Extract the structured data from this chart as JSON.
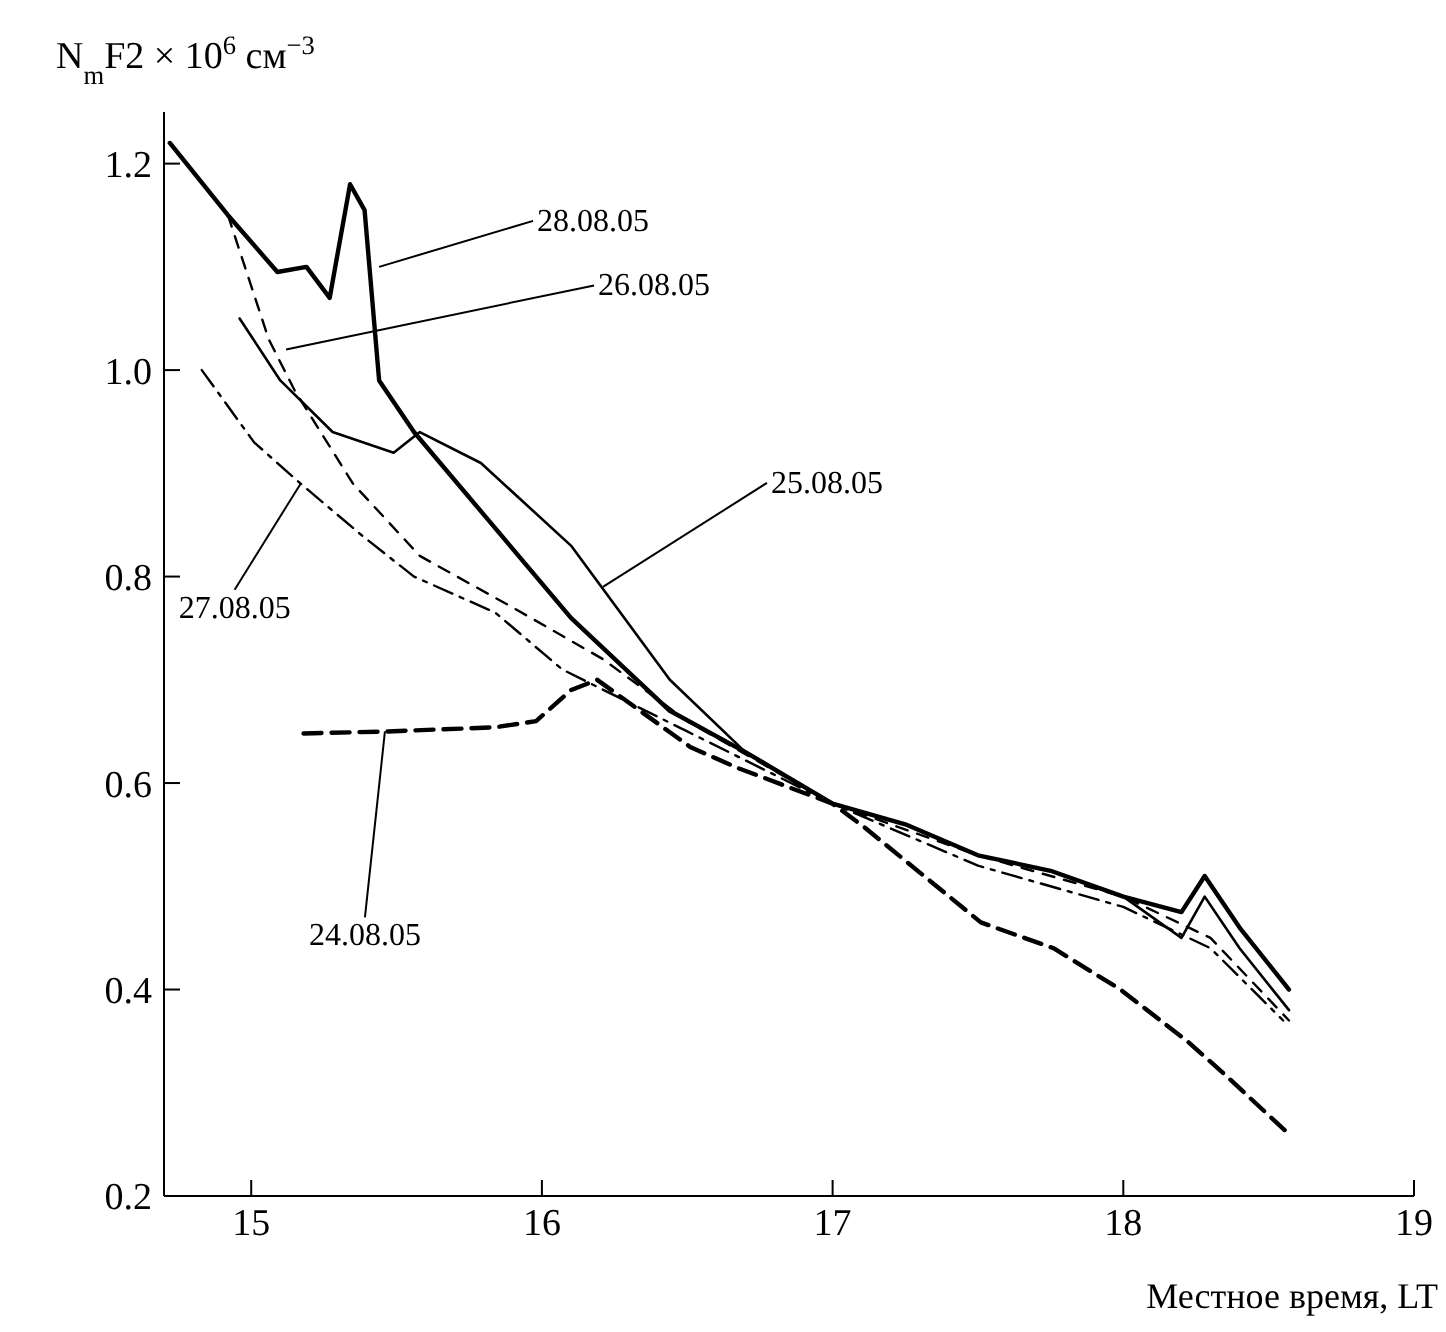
{
  "chart_data": {
    "type": "line",
    "ylabel": "N$_{m}$F2 × 10$^{6}$ см$^{−3}$",
    "xlabel": "Местное время, LT",
    "xlim": [
      14.7,
      19
    ],
    "xticks": [
      15,
      16,
      17,
      18,
      19
    ],
    "ylim": [
      0.2,
      1.25
    ],
    "yticks": [
      0.2,
      0.4,
      0.6,
      0.8,
      {
        "value": 1.0,
        "label": "1.0"
      },
      1.2
    ],
    "grid": false,
    "legend": false,
    "marker": "none",
    "series": [
      {
        "color": "#000000",
        "line_style": "solid",
        "x": [
          14.72,
          14.92,
          15.09,
          15.19,
          15.27,
          15.34,
          15.39,
          15.44,
          15.56,
          15.8,
          16.1,
          16.44,
          16.7,
          17.0,
          17.25,
          17.5,
          17.75,
          18.0,
          18.2,
          18.28,
          18.4,
          18.57
        ],
        "values": [
          1.22,
          1.15,
          1.095,
          1.1,
          1.07,
          1.18,
          1.155,
          0.99,
          0.94,
          0.86,
          0.76,
          0.67,
          0.63,
          0.58,
          0.56,
          0.53,
          0.515,
          0.49,
          0.475,
          0.51,
          0.46,
          0.4
        ]
      },
      {
        "color": "#000000",
        "line_style": "solid",
        "x": [
          14.96,
          15.1,
          15.28,
          15.49,
          15.58,
          15.79,
          16.1,
          16.44,
          16.7,
          17.0,
          17.25,
          17.5,
          17.75,
          18.0,
          18.2,
          18.28,
          18.4,
          18.57
        ],
        "values": [
          1.05,
          0.99,
          0.94,
          0.92,
          0.94,
          0.91,
          0.83,
          0.7,
          0.63,
          0.58,
          0.56,
          0.53,
          0.515,
          0.49,
          0.45,
          0.49,
          0.44,
          0.38
        ]
      },
      {
        "color": "#000000",
        "line_style": "dashed",
        "x": [
          14.92,
          15.06,
          15.15,
          15.35,
          15.58,
          15.9,
          16.21,
          16.5,
          17.0,
          17.5,
          18.0,
          18.3,
          18.57
        ],
        "values": [
          1.15,
          1.03,
          0.98,
          0.89,
          0.82,
          0.77,
          0.72,
          0.66,
          0.58,
          0.53,
          0.49,
          0.45,
          0.37
        ]
      },
      {
        "color": "#000000",
        "line_style": "dashed",
        "x": [
          14.83,
          15.01,
          15.17,
          15.38,
          15.56,
          15.84,
          16.07,
          16.5,
          17.0,
          17.5,
          18.0,
          18.3,
          18.55
        ],
        "values": [
          1.0,
          0.93,
          0.89,
          0.84,
          0.8,
          0.765,
          0.71,
          0.65,
          0.58,
          0.52,
          0.48,
          0.44,
          0.37
        ]
      },
      {
        "color": "#000000",
        "line_style": "dashed",
        "x": [
          15.18,
          15.47,
          15.84,
          15.98,
          16.1,
          16.19,
          16.51,
          16.67,
          17.0,
          17.11,
          17.51,
          17.76,
          17.99,
          18.22,
          18.34,
          18.57
        ],
        "values": [
          0.648,
          0.65,
          0.654,
          0.66,
          0.69,
          0.7,
          0.635,
          0.615,
          0.58,
          0.557,
          0.465,
          0.44,
          0.4,
          0.35,
          0.32,
          0.26
        ]
      }
    ],
    "annotations": [
      {
        "text": "28.08.05",
        "x": 15.44,
        "y": 1.1
      },
      {
        "text": "26.08.05",
        "x": 15.12,
        "y": 1.02
      },
      {
        "text": "25.08.05",
        "x": 16.21,
        "y": 0.79
      },
      {
        "text": "27.08.05",
        "x": 15.17,
        "y": 0.89
      },
      {
        "text": "24.08.05",
        "x": 15.46,
        "y": 0.65
      }
    ]
  }
}
